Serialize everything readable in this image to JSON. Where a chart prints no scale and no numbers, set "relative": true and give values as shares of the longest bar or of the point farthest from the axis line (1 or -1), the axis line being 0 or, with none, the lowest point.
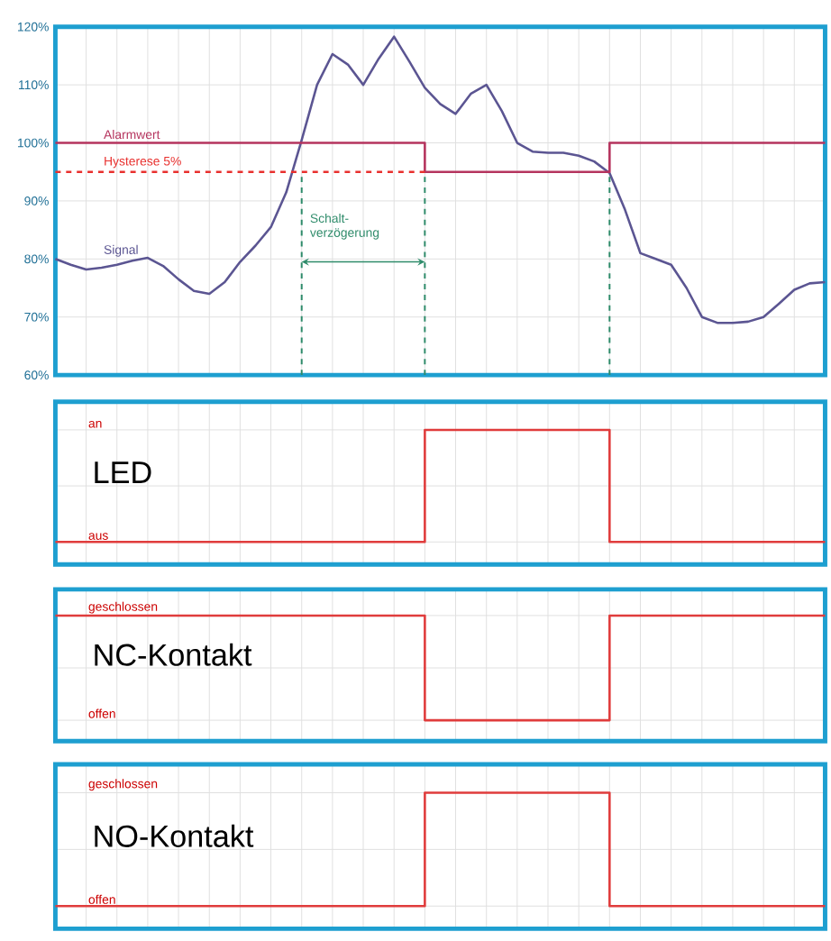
{
  "chart_data": [
    {
      "type": "line",
      "categories": [
        null,
        null,
        null,
        null,
        null,
        null,
        null,
        null,
        null,
        null,
        null,
        null,
        null,
        null,
        null,
        null,
        null,
        null,
        null,
        null,
        null,
        null,
        null,
        null,
        null,
        null,
        null,
        null,
        null,
        null,
        null,
        null,
        null,
        null,
        null,
        null,
        null,
        null,
        null,
        null,
        null,
        null,
        null,
        null,
        null,
        null,
        null,
        null,
        null,
        null,
        null
      ],
      "series": [
        {
          "name": "Signal",
          "color": "#5b5592",
          "values": [
            80,
            79,
            78.2,
            78.5,
            79,
            79.7,
            80.2,
            78.8,
            76.5,
            74.5,
            74,
            76,
            79.5,
            82.3,
            85.5,
            91.5,
            100.5,
            110,
            115.3,
            113.5,
            110,
            114.5,
            118.3,
            114,
            109.5,
            106.7,
            105,
            108.5,
            110,
            105.5,
            100,
            98.5,
            98.3,
            98.3,
            97.8,
            96.8,
            94.8,
            88.5,
            81,
            80,
            79,
            75,
            70,
            69,
            69,
            69.2,
            70,
            72.3,
            74.7,
            75.8,
            76
          ]
        },
        {
          "name": "Alarmwert",
          "type": "step",
          "color": "#b5345e",
          "values": [
            100,
            100,
            100,
            100,
            100,
            100,
            100,
            100,
            100,
            100,
            100,
            100,
            100,
            100,
            100,
            100,
            100,
            100,
            100,
            100,
            100,
            100,
            100,
            100,
            95,
            95,
            95,
            95,
            95,
            95,
            95,
            95,
            95,
            95,
            95,
            95,
            100,
            100,
            100,
            100,
            100,
            100,
            100,
            100,
            100,
            100,
            100,
            100,
            100,
            100,
            100
          ]
        },
        {
          "name": "Hysterese 5%",
          "type": "line",
          "line_style": "dashed",
          "color": "#e8302e",
          "values": [
            95,
            95,
            95,
            95,
            95,
            95,
            95,
            95,
            95,
            95,
            95,
            95,
            95,
            95,
            95,
            95,
            95,
            95,
            95,
            95,
            95,
            95,
            95,
            95,
            95,
            null,
            null,
            null,
            null,
            null,
            null,
            null,
            null,
            null,
            null,
            null,
            null,
            null,
            null,
            null,
            null,
            null,
            null,
            null,
            null,
            null,
            null,
            null,
            null,
            null,
            null
          ]
        }
      ],
      "ylim": [
        60,
        120
      ],
      "yticks": [
        {
          "value": 60,
          "label": "60%"
        },
        {
          "value": 70,
          "label": "70%"
        },
        {
          "value": 80,
          "label": "80%"
        },
        {
          "value": 90,
          "label": "90%"
        },
        {
          "value": 100,
          "label": "100%"
        },
        {
          "value": 110,
          "label": "110%"
        },
        {
          "value": 120,
          "label": "120%"
        }
      ],
      "annotations": [
        "Schalt-verzögerung"
      ],
      "grid": true,
      "tick_labels": "y"
    },
    {
      "type": "step",
      "title": "LED",
      "categories": [
        null,
        null,
        null,
        null,
        null,
        null,
        null,
        null,
        null,
        null,
        null,
        null,
        null,
        null,
        null,
        null,
        null,
        null,
        null,
        null,
        null,
        null,
        null,
        null,
        null,
        null,
        null,
        null,
        null,
        null,
        null,
        null,
        null,
        null,
        null,
        null,
        null,
        null,
        null,
        null,
        null,
        null,
        null,
        null,
        null,
        null,
        null,
        null,
        null,
        null,
        null
      ],
      "series": [
        {
          "color": "#e03c3c",
          "values": [
            0,
            0,
            0,
            0,
            0,
            0,
            0,
            0,
            0,
            0,
            0,
            0,
            0,
            0,
            0,
            0,
            0,
            0,
            0,
            0,
            0,
            0,
            0,
            0,
            1,
            1,
            1,
            1,
            1,
            1,
            1,
            1,
            1,
            1,
            1,
            1,
            0,
            0,
            0,
            0,
            0,
            0,
            0,
            0,
            0,
            0,
            0,
            0,
            0,
            0,
            0
          ]
        }
      ],
      "relative": true,
      "annotations": [
        "aus",
        "an"
      ],
      "grid": true,
      "tick_labels": "y"
    },
    {
      "type": "step",
      "title": "NC-Kontakt",
      "categories": [
        null,
        null,
        null,
        null,
        null,
        null,
        null,
        null,
        null,
        null,
        null,
        null,
        null,
        null,
        null,
        null,
        null,
        null,
        null,
        null,
        null,
        null,
        null,
        null,
        null,
        null,
        null,
        null,
        null,
        null,
        null,
        null,
        null,
        null,
        null,
        null,
        null,
        null,
        null,
        null,
        null,
        null,
        null,
        null,
        null,
        null,
        null,
        null,
        null,
        null,
        null
      ],
      "series": [
        {
          "color": "#e03c3c",
          "values": [
            1,
            1,
            1,
            1,
            1,
            1,
            1,
            1,
            1,
            1,
            1,
            1,
            1,
            1,
            1,
            1,
            1,
            1,
            1,
            1,
            1,
            1,
            1,
            1,
            0,
            0,
            0,
            0,
            0,
            0,
            0,
            0,
            0,
            0,
            0,
            0,
            1,
            1,
            1,
            1,
            1,
            1,
            1,
            1,
            1,
            1,
            1,
            1,
            1,
            1,
            1
          ]
        }
      ],
      "relative": true,
      "annotations": [
        "offen",
        "geschlossen"
      ],
      "grid": true,
      "tick_labels": "y"
    },
    {
      "type": "step",
      "title": "NO-Kontakt",
      "categories": [
        null,
        null,
        null,
        null,
        null,
        null,
        null,
        null,
        null,
        null,
        null,
        null,
        null,
        null,
        null,
        null,
        null,
        null,
        null,
        null,
        null,
        null,
        null,
        null,
        null,
        null,
        null,
        null,
        null,
        null,
        null,
        null,
        null,
        null,
        null,
        null,
        null,
        null,
        null,
        null,
        null,
        null,
        null,
        null,
        null,
        null,
        null,
        null,
        null,
        null,
        null
      ],
      "series": [
        {
          "color": "#e03c3c",
          "values": [
            0,
            0,
            0,
            0,
            0,
            0,
            0,
            0,
            0,
            0,
            0,
            0,
            0,
            0,
            0,
            0,
            0,
            0,
            0,
            0,
            0,
            0,
            0,
            0,
            1,
            1,
            1,
            1,
            1,
            1,
            1,
            1,
            1,
            1,
            1,
            1,
            0,
            0,
            0,
            0,
            0,
            0,
            0,
            0,
            0,
            0,
            0,
            0,
            0,
            0,
            0
          ]
        }
      ],
      "relative": true,
      "annotations": [
        "offen",
        "geschlossen"
      ],
      "grid": true,
      "tick_labels": "y"
    }
  ]
}
